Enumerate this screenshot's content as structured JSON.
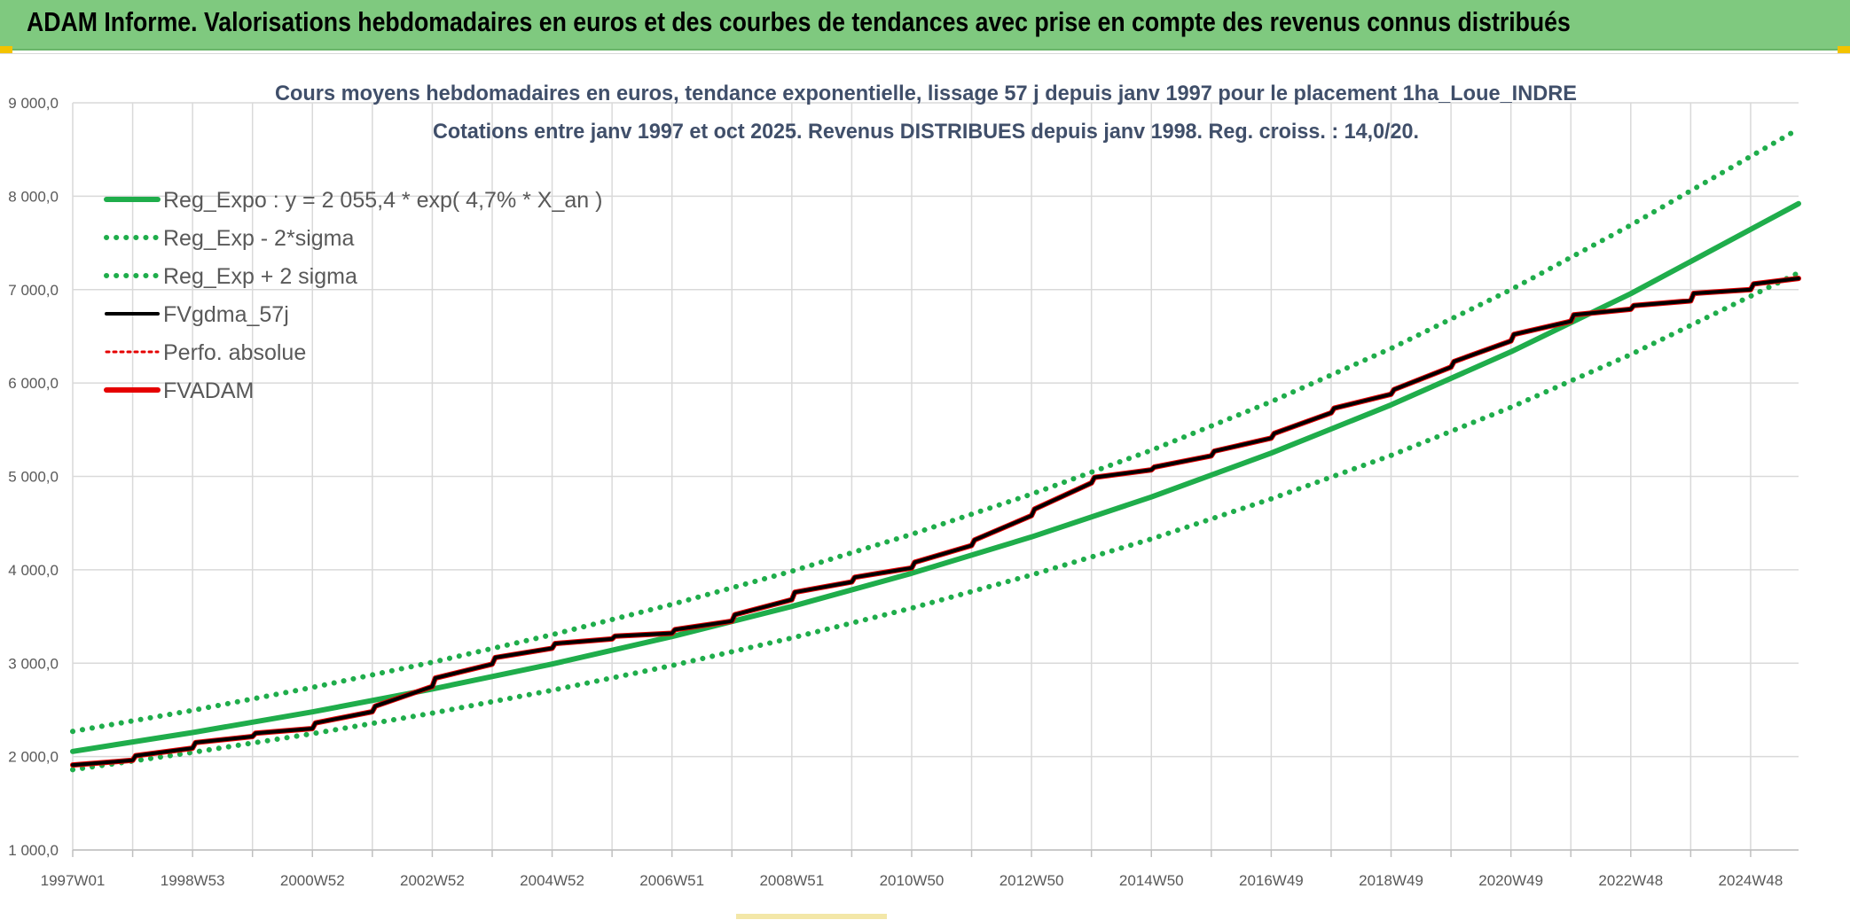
{
  "banner": {
    "title": "ADAM Informe. Valorisations hebdomadaires en euros et des courbes de tendances avec prise en compte des revenus connus distribués"
  },
  "colors": {
    "banner_bg": "#7fc97f",
    "regression": "#1fad4b",
    "fvgdma": "#000000",
    "fvadam": "#e50000",
    "perfo": "#e50000",
    "gridline": "#d9d9d9",
    "corner_accent": "#f3c300"
  },
  "chart_data": {
    "type": "line",
    "title": "Cours moyens hebdomadaires en euros, tendance exponentielle, lissage 57 j depuis janv 1997 pour le placement 1ha_Loue_INDRE",
    "subtitle": "Cotations entre janv 1997 et oct 2025. Revenus DISTRIBUES depuis janv 1998. Reg. croiss. : 14,0/20.",
    "xlabel": "",
    "ylabel": "",
    "x_range": [
      1997.0,
      2025.8
    ],
    "x_tick_labels": [
      "1997W01",
      "1998W53",
      "2000W52",
      "2002W52",
      "2004W52",
      "2006W51",
      "2008W51",
      "2010W50",
      "2012W50",
      "2014W50",
      "2016W49",
      "2018W49",
      "2020W49",
      "2022W48",
      "2024W48"
    ],
    "y_ticks": [
      1000,
      2000,
      3000,
      4000,
      5000,
      6000,
      7000,
      8000,
      9000
    ],
    "y_tick_labels": [
      "1 000,0",
      "2 000,0",
      "3 000,0",
      "4 000,0",
      "5 000,0",
      "6 000,0",
      "7 000,0",
      "8 000,0",
      "9 000,0"
    ],
    "ylim": [
      1000,
      9000
    ],
    "grid": true,
    "legend_position": "top-left",
    "series": [
      {
        "name": "Reg_Expo : y = 2 055,4 * exp( 4,7% *  X_an )",
        "style": "solid",
        "color": "#1fad4b",
        "x": [
          1997.0,
          1999.0,
          2001.0,
          2003.0,
          2005.0,
          2007.0,
          2009.0,
          2011.0,
          2013.0,
          2015.0,
          2017.0,
          2019.0,
          2021.0,
          2023.0,
          2025.8
        ],
        "y": [
          2055,
          2257,
          2479,
          2723,
          2991,
          3285,
          3608,
          3963,
          4352,
          4780,
          5250,
          5766,
          6334,
          6957,
          7920
        ]
      },
      {
        "name": "Reg_Exp - 2*sigma",
        "style": "dotted",
        "color": "#1fad4b",
        "x": [
          1997.0,
          1999.0,
          2001.0,
          2003.0,
          2005.0,
          2007.0,
          2009.0,
          2011.0,
          2013.0,
          2015.0,
          2017.0,
          2019.0,
          2021.0,
          2023.0,
          2025.8
        ],
        "y": [
          1860,
          2045,
          2245,
          2465,
          2710,
          2975,
          3270,
          3590,
          3945,
          4330,
          4760,
          5225,
          5740,
          6305,
          7180
        ]
      },
      {
        "name": "Reg_Exp + 2 sigma",
        "style": "dotted",
        "color": "#1fad4b",
        "x": [
          1997.0,
          1999.0,
          2001.0,
          2003.0,
          2005.0,
          2007.0,
          2009.0,
          2011.0,
          2013.0,
          2015.0,
          2017.0,
          2019.0,
          2021.0,
          2023.0,
          2025.8
        ],
        "y": [
          2270,
          2495,
          2740,
          3010,
          3305,
          3630,
          3985,
          4380,
          4810,
          5280,
          5800,
          6370,
          7000,
          7690,
          8720
        ]
      },
      {
        "name": "FVgdma_57j",
        "style": "solid",
        "color": "#000000",
        "x": [
          1997.0,
          1998.0,
          1998.05,
          1999.0,
          1999.05,
          2000.0,
          2000.05,
          2001.0,
          2001.05,
          2002.0,
          2002.05,
          2003.0,
          2003.05,
          2004.0,
          2004.05,
          2005.0,
          2005.05,
          2006.0,
          2006.05,
          2007.0,
          2007.05,
          2008.0,
          2008.05,
          2009.0,
          2009.05,
          2010.0,
          2010.05,
          2011.0,
          2011.05,
          2012.0,
          2012.05,
          2013.0,
          2013.05,
          2014.0,
          2014.05,
          2015.0,
          2015.05,
          2016.0,
          2016.05,
          2017.0,
          2017.05,
          2018.0,
          2018.05,
          2019.0,
          2019.05,
          2020.0,
          2020.05,
          2021.0,
          2021.05,
          2022.0,
          2022.05,
          2023.0,
          2023.05,
          2024.0,
          2024.05,
          2025.0,
          2025.05,
          2025.8
        ],
        "y": [
          1910,
          1960,
          2010,
          2090,
          2150,
          2215,
          2250,
          2300,
          2360,
          2480,
          2540,
          2750,
          2840,
          2990,
          3060,
          3160,
          3210,
          3260,
          3290,
          3320,
          3360,
          3450,
          3520,
          3680,
          3760,
          3870,
          3920,
          4020,
          4080,
          4260,
          4320,
          4580,
          4650,
          4930,
          4990,
          5070,
          5100,
          5220,
          5270,
          5410,
          5460,
          5680,
          5730,
          5880,
          5930,
          6170,
          6230,
          6450,
          6520,
          6660,
          6730,
          6790,
          6830,
          6880,
          6960,
          7000,
          7060,
          7120
        ]
      },
      {
        "name": "Perfo. absolue",
        "style": "dotted",
        "color": "#e50000",
        "x": [
          1997.0,
          1998.0,
          1998.05,
          1999.0,
          1999.05,
          2000.0,
          2000.05,
          2001.0,
          2001.05,
          2002.0,
          2002.05,
          2003.0,
          2003.05,
          2004.0,
          2004.05,
          2005.0,
          2005.05,
          2006.0,
          2006.05,
          2007.0,
          2007.05,
          2008.0,
          2008.05,
          2009.0,
          2009.05,
          2010.0,
          2010.05,
          2011.0,
          2011.05,
          2012.0,
          2012.05,
          2013.0,
          2013.05,
          2014.0,
          2014.05,
          2015.0,
          2015.05,
          2016.0,
          2016.05,
          2017.0,
          2017.05,
          2018.0,
          2018.05,
          2019.0,
          2019.05,
          2020.0,
          2020.05,
          2021.0,
          2021.05,
          2022.0,
          2022.05,
          2023.0,
          2023.05,
          2024.0,
          2024.05,
          2025.0,
          2025.05,
          2025.8
        ],
        "y": [
          1910,
          1960,
          2010,
          2090,
          2150,
          2215,
          2250,
          2300,
          2360,
          2480,
          2540,
          2750,
          2840,
          2990,
          3060,
          3160,
          3210,
          3260,
          3290,
          3320,
          3360,
          3450,
          3520,
          3680,
          3760,
          3870,
          3920,
          4020,
          4080,
          4260,
          4320,
          4580,
          4650,
          4930,
          4990,
          5070,
          5100,
          5220,
          5270,
          5410,
          5460,
          5680,
          5730,
          5880,
          5930,
          6170,
          6230,
          6450,
          6520,
          6660,
          6730,
          6790,
          6830,
          6880,
          6960,
          7000,
          7060,
          7120
        ]
      },
      {
        "name": "FVADAM",
        "style": "solid",
        "color": "#e50000",
        "x": [
          1997.0,
          1998.0,
          1998.05,
          1999.0,
          1999.05,
          2000.0,
          2000.05,
          2001.0,
          2001.05,
          2002.0,
          2002.05,
          2003.0,
          2003.05,
          2004.0,
          2004.05,
          2005.0,
          2005.05,
          2006.0,
          2006.05,
          2007.0,
          2007.05,
          2008.0,
          2008.05,
          2009.0,
          2009.05,
          2010.0,
          2010.05,
          2011.0,
          2011.05,
          2012.0,
          2012.05,
          2013.0,
          2013.05,
          2014.0,
          2014.05,
          2015.0,
          2015.05,
          2016.0,
          2016.05,
          2017.0,
          2017.05,
          2018.0,
          2018.05,
          2019.0,
          2019.05,
          2020.0,
          2020.05,
          2021.0,
          2021.05,
          2022.0,
          2022.05,
          2023.0,
          2023.05,
          2024.0,
          2024.05,
          2025.0,
          2025.05,
          2025.8
        ],
        "y": [
          1910,
          1960,
          2010,
          2090,
          2150,
          2215,
          2250,
          2300,
          2360,
          2480,
          2540,
          2750,
          2840,
          2990,
          3060,
          3160,
          3210,
          3260,
          3290,
          3320,
          3360,
          3450,
          3520,
          3680,
          3760,
          3870,
          3920,
          4020,
          4080,
          4260,
          4320,
          4580,
          4650,
          4930,
          4990,
          5070,
          5100,
          5220,
          5270,
          5410,
          5460,
          5680,
          5730,
          5880,
          5930,
          6170,
          6230,
          6450,
          6520,
          6660,
          6730,
          6790,
          6830,
          6880,
          6960,
          7000,
          7060,
          7120
        ]
      }
    ]
  }
}
